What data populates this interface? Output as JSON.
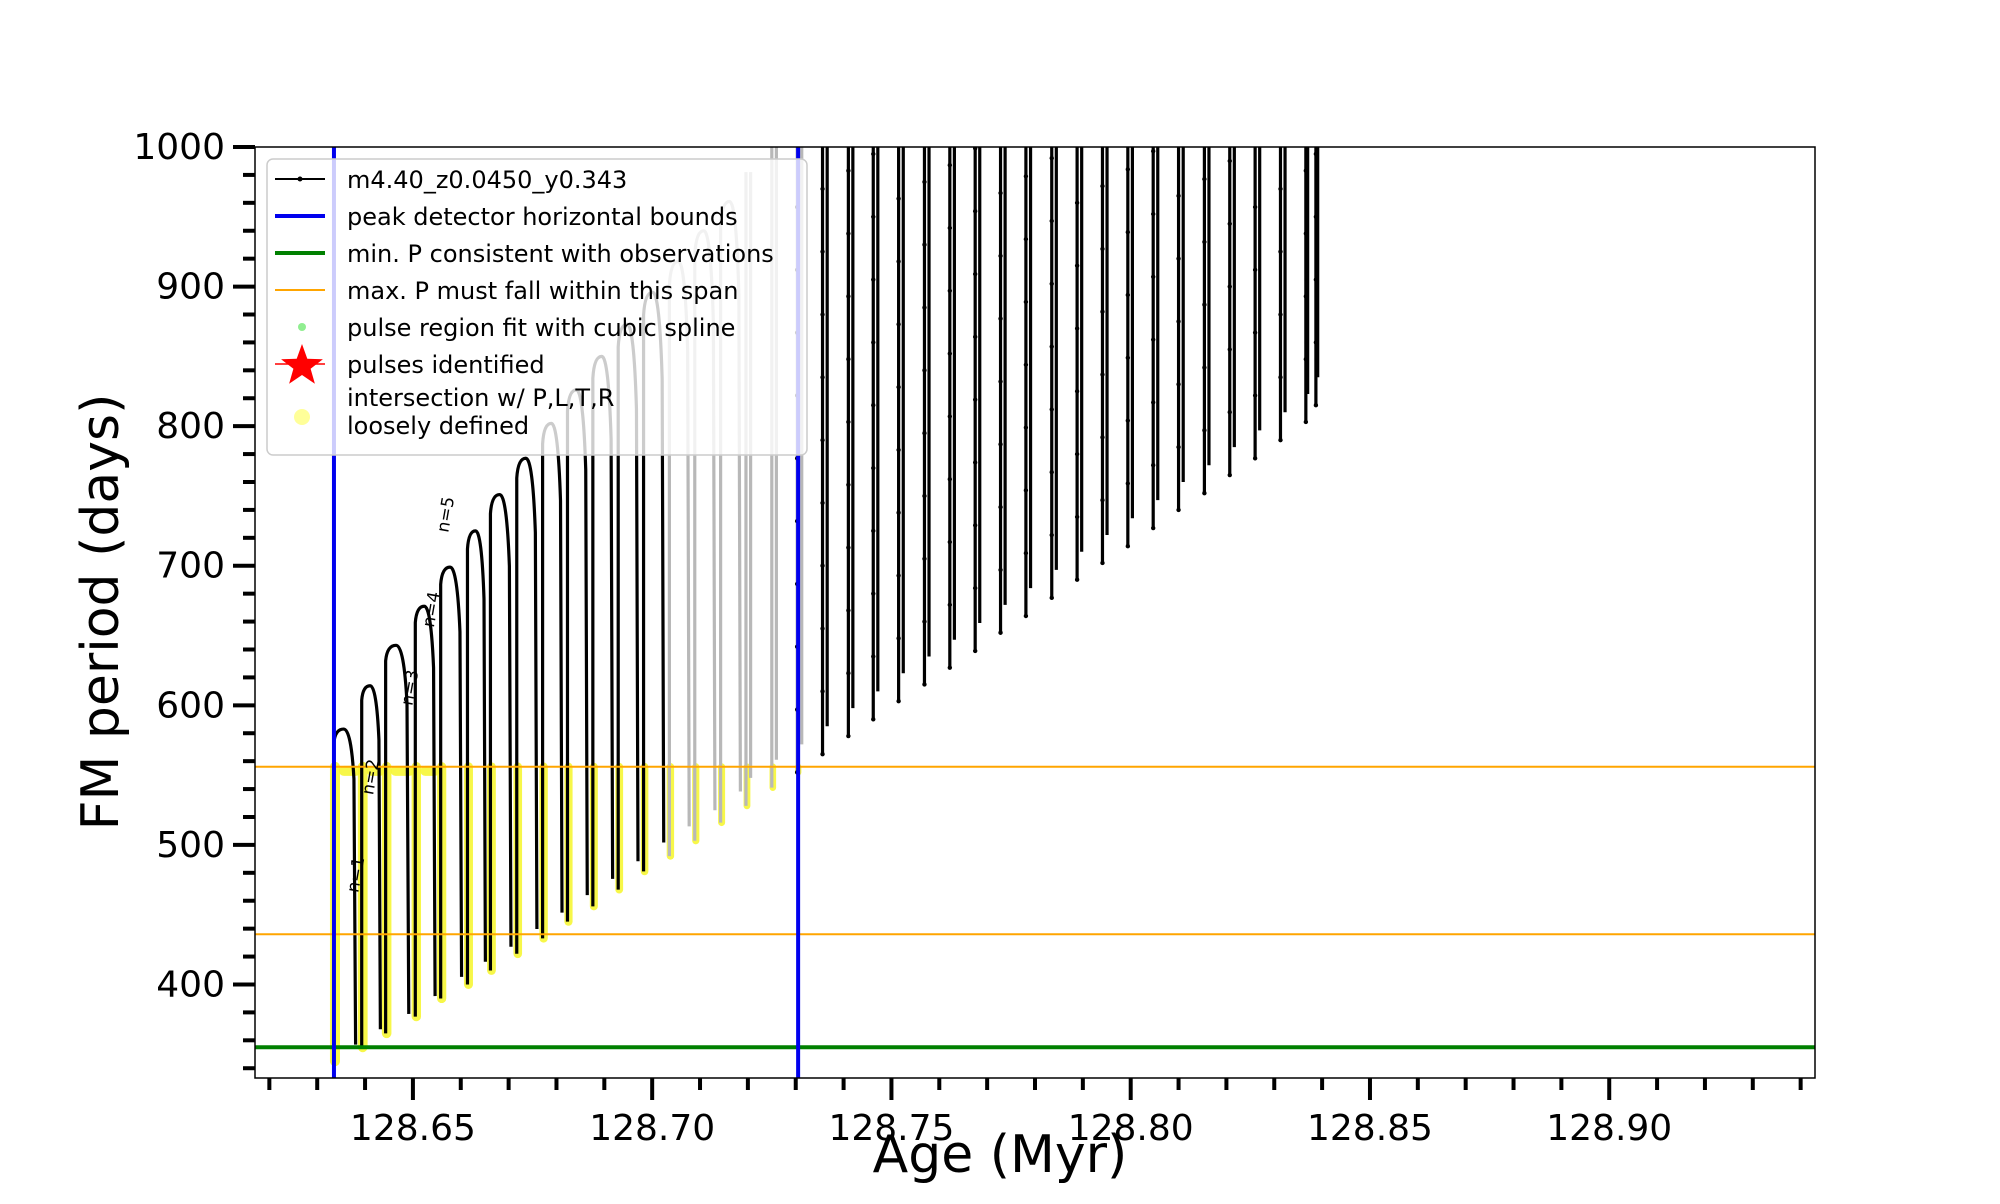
{
  "chart_data": {
    "type": "line",
    "xlabel": "Age (Myr)",
    "ylabel": "FM period (days)",
    "xlim": [
      128.617,
      128.943
    ],
    "ylim": [
      333,
      1000
    ],
    "x_ticks": [
      128.65,
      128.7,
      128.75,
      128.8,
      128.85,
      128.9
    ],
    "x_tick_labels": [
      "128.65",
      "128.70",
      "128.75",
      "128.80",
      "128.85",
      "128.90"
    ],
    "y_ticks": [
      400,
      500,
      600,
      700,
      800,
      900,
      1000
    ],
    "y_tick_labels": [
      "400",
      "500",
      "600",
      "700",
      "800",
      "900",
      "1000"
    ],
    "legend": {
      "placement": "upper-left",
      "entries": [
        {
          "label": "m4.40_z0.0450_y0.343",
          "marker": "line-dot",
          "color": "#000000"
        },
        {
          "label": "peak detector horizontal bounds",
          "marker": "line",
          "color": "#0000ee"
        },
        {
          "label": "min. P consistent with observations",
          "marker": "line",
          "color": "#008000"
        },
        {
          "label": "max. P must fall within this span",
          "marker": "thin-line",
          "color": "#ffa500"
        },
        {
          "label": "pulse region fit with cubic spline",
          "marker": "dot",
          "color": "#90ee90"
        },
        {
          "label": "pulses identified",
          "marker": "star",
          "color": "#ff0000"
        },
        {
          "label": "intersection w/ P,L,T,R\nloosely defined",
          "marker": "circle",
          "color": "#ffff99"
        }
      ]
    },
    "reference_lines": {
      "peak_detector_bounds_x": [
        128.6335,
        128.7305
      ],
      "min_period_y": 355,
      "max_period_span_y": [
        436,
        556
      ]
    },
    "series": [
      {
        "name": "m4.40_z0.0450_y0.343",
        "pulse_ages": [
          128.6335,
          128.6393,
          128.6443,
          128.6505,
          128.6558,
          128.6614,
          128.6662,
          128.6717,
          128.6771,
          128.6823,
          128.6876,
          128.6929,
          128.6982,
          128.7036,
          128.7089,
          128.7143,
          128.7196,
          128.725,
          128.7303,
          128.7356,
          128.741,
          128.7462,
          128.7515,
          128.7569,
          128.7622,
          128.7675,
          128.7728,
          128.7781,
          128.7835,
          128.7888,
          128.7941,
          128.7994,
          128.8047,
          128.81,
          128.8154,
          128.8207,
          128.826,
          128.8313,
          128.8366,
          128.8387
        ],
        "pulse_peak_periods": [
          583,
          614,
          643,
          671,
          699,
          725,
          751,
          777,
          802,
          826,
          850,
          873,
          896,
          918,
          940,
          961,
          982,
          1000,
          1000,
          1000,
          1000,
          1000,
          1000,
          1000,
          1000,
          1000,
          1000,
          1000,
          1000,
          1000,
          1000,
          1000,
          1000,
          1000,
          1000,
          1000,
          1000,
          1000,
          1000,
          1000
        ],
        "pulse_min_periods": [
          345,
          355,
          365,
          377,
          390,
          400,
          410,
          422,
          433,
          445,
          456,
          468,
          481,
          492,
          503,
          516,
          528,
          541,
          552,
          565,
          578,
          590,
          603,
          615,
          627,
          639,
          652,
          664,
          677,
          690,
          702,
          714,
          727,
          740,
          752,
          765,
          777,
          790,
          803,
          815
        ]
      }
    ],
    "annotations": [
      {
        "text": "n=1",
        "x": 128.6392,
        "y": 478
      },
      {
        "text": "n=2",
        "x": 128.6423,
        "y": 548
      },
      {
        "text": "n=3",
        "x": 128.6505,
        "y": 612
      },
      {
        "text": "n=4",
        "x": 128.655,
        "y": 668
      },
      {
        "text": "n=5",
        "x": 128.658,
        "y": 736
      }
    ]
  }
}
